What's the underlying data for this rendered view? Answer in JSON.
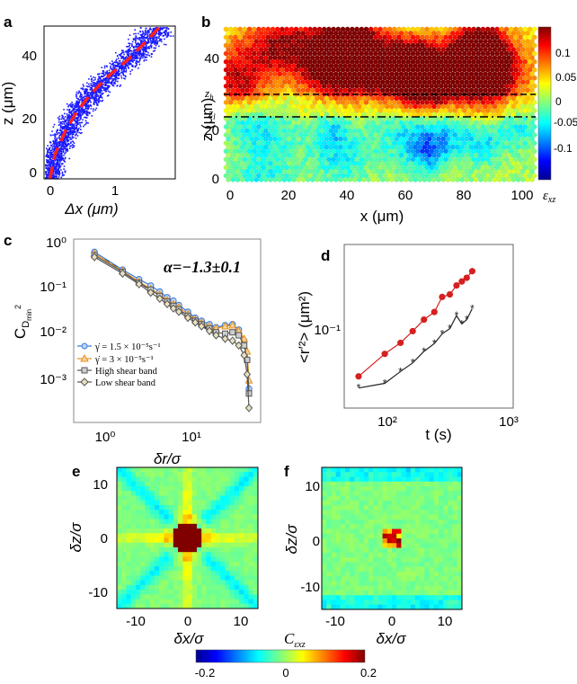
{
  "panels": {
    "a": {
      "label": "a",
      "ylabel": "z (μm)",
      "xlabel": "Δx (μm)",
      "xticks": [
        "0",
        "1"
      ],
      "yticks": [
        "0",
        "20",
        "40"
      ],
      "colors": {
        "points": "#1a1aff",
        "fit": "#ff2020"
      }
    },
    "b": {
      "label": "b",
      "ylabel": "z (μm)",
      "xlabel": "x (μm)",
      "xticks": [
        "0",
        "20",
        "40",
        "60",
        "80",
        "100"
      ],
      "yticks": [
        "0",
        "20",
        "40"
      ],
      "zh_label": "z",
      "zh_sub": "h",
      "zl_label": "z",
      "zl_sub": "l",
      "colorbar_ticks": [
        "0.1",
        "0.05",
        "0",
        "-0.05",
        "-0.1"
      ],
      "colorbar_label": "ε",
      "colorbar_sub": "xz"
    },
    "c": {
      "label": "c",
      "ylabel": "C",
      "ylabel_sub": "D",
      "ylabel_subsub": "min",
      "ylabel_sup": "2",
      "xlabel": "δr/σ",
      "annotation": "α=−1.3±0.1",
      "yticks": [
        "10⁰",
        "10⁻¹",
        "10⁻²",
        "10⁻³"
      ],
      "xticks": [
        "10⁰",
        "10¹"
      ],
      "legend": [
        {
          "text": "γ̇ = 1.5 × 10⁻⁵s⁻¹",
          "color": "#3a78d8",
          "marker": "circle"
        },
        {
          "text": "γ̇ = 3 × 10⁻⁵s⁻¹",
          "color": "#e8901c",
          "marker": "triangle"
        },
        {
          "text": "High shear band",
          "color": "#555555",
          "marker": "square"
        },
        {
          "text": "Low shear band",
          "color": "#555555",
          "marker": "diamond"
        }
      ]
    },
    "d": {
      "label": "d",
      "ylabel": "<r′²> (μm²)",
      "xlabel": "t (s)",
      "yticks": [
        "10⁻¹"
      ],
      "xticks": [
        "10²",
        "10³"
      ],
      "colors": {
        "red": "#d42020",
        "black": "#222222"
      }
    },
    "e": {
      "label": "e",
      "ylabel": "δz/σ",
      "xlabel": "δx/σ",
      "yticks": [
        "10",
        "0",
        "-10"
      ],
      "xticks": [
        "-10",
        "0",
        "10"
      ]
    },
    "f": {
      "label": "f",
      "ylabel": "δz/σ",
      "xlabel": "δx/σ",
      "yticks": [
        "10",
        "0",
        "-10"
      ],
      "xticks": [
        "-10",
        "0",
        "10"
      ]
    },
    "bottom_colorbar": {
      "label": "C",
      "label_sub": "εxz",
      "ticks": [
        "-0.2",
        "0",
        "0.2"
      ]
    }
  },
  "chart_data": [
    {
      "type": "scatter",
      "title": "a",
      "xlabel": "Δx (μm)",
      "ylabel": "z (μm)",
      "xlim": [
        0,
        1.8
      ],
      "ylim": [
        0,
        50
      ],
      "fit_curve": {
        "x": [
          0.08,
          0.15,
          0.3,
          0.45,
          0.65,
          0.9,
          1.15,
          1.4,
          1.6
        ],
        "y": [
          0,
          8,
          16,
          22,
          28,
          34,
          39,
          45,
          50
        ]
      }
    },
    {
      "type": "line",
      "title": "c",
      "xlabel": "δr/σ",
      "ylabel": "C_Dmin2",
      "xlim": [
        0.6,
        60
      ],
      "ylim": [
        0.0002,
        1.3
      ],
      "slope_guide": {
        "x": [
          1.3,
          20
        ],
        "y": [
          0.5,
          0.013
        ]
      },
      "x": [
        1,
        2,
        3,
        4,
        5,
        6,
        7,
        8,
        10,
        12,
        14,
        17,
        20,
        25,
        30,
        35,
        40,
        43,
        45
      ],
      "series": [
        {
          "name": "γ̇ = 1.5 × 10⁻⁵s⁻¹",
          "values": [
            0.7,
            0.3,
            0.19,
            0.14,
            0.105,
            0.08,
            0.068,
            0.055,
            0.04,
            0.03,
            0.026,
            0.022,
            0.019,
            0.021,
            0.022,
            0.017,
            0.01,
            0.004,
            0.001
          ]
        },
        {
          "name": "γ̇ = 3 × 10⁻⁵s⁻¹",
          "values": [
            0.65,
            0.28,
            0.17,
            0.12,
            0.092,
            0.07,
            0.058,
            0.05,
            0.036,
            0.028,
            0.024,
            0.02,
            0.018,
            0.02,
            0.021,
            0.016,
            0.011,
            0.006,
            0.0015
          ]
        },
        {
          "name": "High shear band",
          "values": [
            0.6,
            0.27,
            0.16,
            0.115,
            0.085,
            0.065,
            0.053,
            0.045,
            0.033,
            0.026,
            0.022,
            0.018,
            0.015,
            0.014,
            0.015,
            0.013,
            0.008,
            0.004,
            0.0008
          ]
        },
        {
          "name": "Low shear band",
          "values": [
            0.55,
            0.25,
            0.15,
            0.1,
            0.075,
            0.058,
            0.047,
            0.04,
            0.03,
            0.024,
            0.02,
            0.016,
            0.013,
            0.011,
            0.01,
            0.008,
            0.005,
            0.002,
            0.0004
          ]
        }
      ]
    },
    {
      "type": "line",
      "title": "d",
      "xlabel": "t (s)",
      "ylabel": "<r′²> (μm²)",
      "xlim": [
        50,
        1100
      ],
      "ylim": [
        0.02,
        0.55
      ],
      "series": [
        {
          "name": "red",
          "x": [
            65,
            105,
            140,
            175,
            215,
            260,
            300,
            345,
            390,
            430,
            470,
            520
          ],
          "values": [
            0.038,
            0.06,
            0.075,
            0.095,
            0.12,
            0.14,
            0.19,
            0.2,
            0.24,
            0.26,
            0.28,
            0.32
          ]
        },
        {
          "name": "black",
          "x": [
            65,
            105,
            140,
            175,
            215,
            260,
            300,
            345,
            390,
            430,
            470,
            520
          ],
          "values": [
            0.03,
            0.033,
            0.042,
            0.05,
            0.063,
            0.074,
            0.09,
            0.1,
            0.13,
            0.11,
            0.12,
            0.15
          ]
        }
      ]
    }
  ]
}
